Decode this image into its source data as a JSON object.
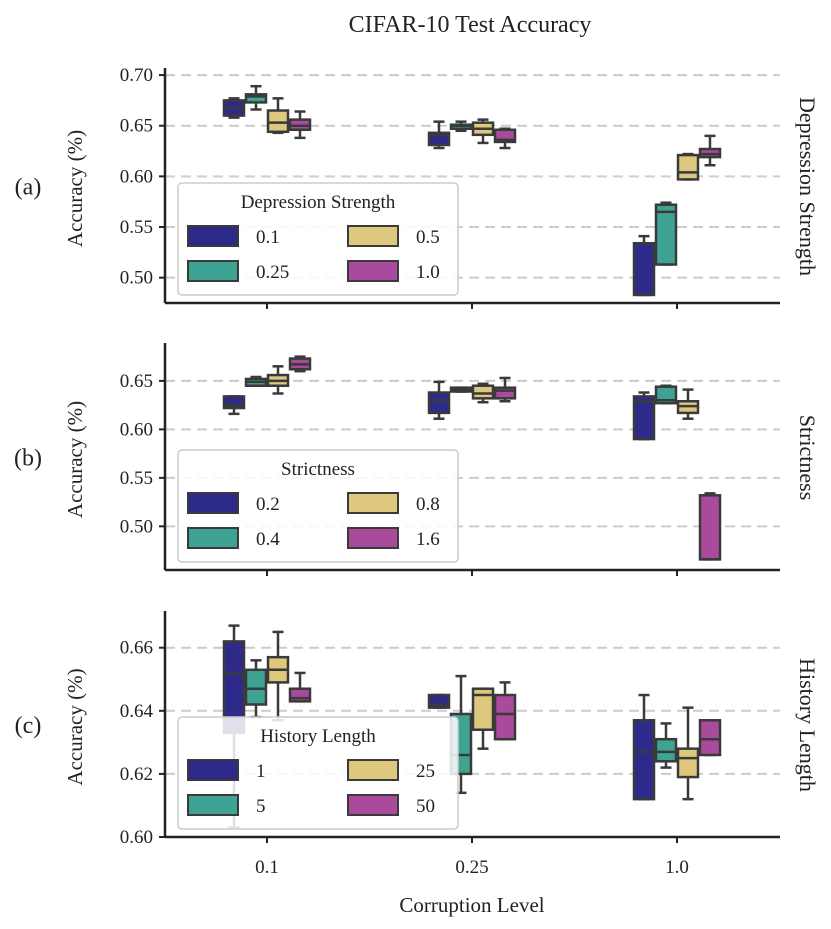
{
  "colors": {
    "s1": "#2e2a8c",
    "s2": "#3fa394",
    "s3": "#ddc87e",
    "s4": "#a94a9c",
    "grid": "#cccccc",
    "edge": "#3a3a3a"
  },
  "chart_data": {
    "type": "box",
    "title": "CIFAR-10 Test Accuracy",
    "xlabel": "Corruption Level",
    "categories": [
      "0.1",
      "0.25",
      "1.0"
    ],
    "panels": [
      {
        "letter": "(a)",
        "row_title": "Depression Strength",
        "ylabel": "Accuracy (%)",
        "ylim": [
          0.475,
          0.705
        ],
        "yticks": [
          0.5,
          0.55,
          0.6,
          0.65,
          0.7
        ],
        "ytick_labels": [
          "0.50",
          "0.55",
          "0.60",
          "0.65",
          "0.70"
        ],
        "legend": {
          "title": "Depression Strength",
          "position": "lower-left",
          "labels": [
            "0.1",
            "0.25",
            "0.5",
            "1.0"
          ]
        },
        "series": [
          {
            "name": "0.1",
            "boxes": [
              {
                "whislo": 0.658,
                "q1": 0.66,
                "med": 0.668,
                "q3": 0.675,
                "whishi": 0.677
              },
              {
                "whislo": 0.628,
                "q1": 0.631,
                "med": 0.641,
                "q3": 0.643,
                "whishi": 0.654
              },
              {
                "whislo": 0.483,
                "q1": 0.483,
                "med": 0.483,
                "q3": 0.534,
                "whishi": 0.541
              }
            ]
          },
          {
            "name": "0.25",
            "boxes": [
              {
                "whislo": 0.666,
                "q1": 0.673,
                "med": 0.679,
                "q3": 0.681,
                "whishi": 0.689
              },
              {
                "whislo": 0.645,
                "q1": 0.647,
                "med": 0.65,
                "q3": 0.651,
                "whishi": 0.654
              },
              {
                "whislo": 0.513,
                "q1": 0.513,
                "med": 0.565,
                "q3": 0.572,
                "whishi": 0.574
              }
            ]
          },
          {
            "name": "0.5",
            "boxes": [
              {
                "whislo": 0.643,
                "q1": 0.644,
                "med": 0.653,
                "q3": 0.665,
                "whishi": 0.677
              },
              {
                "whislo": 0.633,
                "q1": 0.641,
                "med": 0.647,
                "q3": 0.653,
                "whishi": 0.656
              },
              {
                "whislo": 0.597,
                "q1": 0.597,
                "med": 0.604,
                "q3": 0.621,
                "whishi": 0.622
              }
            ]
          },
          {
            "name": "1.0",
            "boxes": [
              {
                "whislo": 0.638,
                "q1": 0.646,
                "med": 0.65,
                "q3": 0.656,
                "whishi": 0.664
              },
              {
                "whislo": 0.628,
                "q1": 0.634,
                "med": 0.636,
                "q3": 0.646,
                "whishi": 0.647
              },
              {
                "whislo": 0.611,
                "q1": 0.619,
                "med": 0.622,
                "q3": 0.627,
                "whishi": 0.64
              }
            ]
          }
        ]
      },
      {
        "letter": "(b)",
        "row_title": "Strictness",
        "ylabel": "Accuracy (%)",
        "ylim": [
          0.455,
          0.687
        ],
        "yticks": [
          0.5,
          0.55,
          0.6,
          0.65
        ],
        "ytick_labels": [
          "0.50",
          "0.55",
          "0.60",
          "0.65"
        ],
        "legend": {
          "title": "Strictness",
          "position": "lower-left",
          "labels": [
            "0.2",
            "0.4",
            "0.8",
            "1.6"
          ]
        },
        "series": [
          {
            "name": "0.2",
            "boxes": [
              {
                "whislo": 0.616,
                "q1": 0.622,
                "med": 0.625,
                "q3": 0.634,
                "whishi": 0.634
              },
              {
                "whislo": 0.611,
                "q1": 0.617,
                "med": 0.63,
                "q3": 0.638,
                "whishi": 0.649
              },
              {
                "whislo": 0.59,
                "q1": 0.59,
                "med": 0.629,
                "q3": 0.634,
                "whishi": 0.638
              }
            ]
          },
          {
            "name": "0.4",
            "boxes": [
              {
                "whislo": 0.645,
                "q1": 0.645,
                "med": 0.649,
                "q3": 0.652,
                "whishi": 0.654
              },
              {
                "whislo": 0.639,
                "q1": 0.639,
                "med": 0.641,
                "q3": 0.643,
                "whishi": 0.643
              },
              {
                "whislo": 0.627,
                "q1": 0.627,
                "med": 0.63,
                "q3": 0.644,
                "whishi": 0.645
              }
            ]
          },
          {
            "name": "0.8",
            "boxes": [
              {
                "whislo": 0.637,
                "q1": 0.645,
                "med": 0.65,
                "q3": 0.656,
                "whishi": 0.665
              },
              {
                "whislo": 0.628,
                "q1": 0.632,
                "med": 0.637,
                "q3": 0.645,
                "whishi": 0.647
              },
              {
                "whislo": 0.611,
                "q1": 0.617,
                "med": 0.624,
                "q3": 0.629,
                "whishi": 0.641
              }
            ]
          },
          {
            "name": "1.6",
            "boxes": [
              {
                "whislo": 0.66,
                "q1": 0.662,
                "med": 0.667,
                "q3": 0.673,
                "whishi": 0.675
              },
              {
                "whislo": 0.629,
                "q1": 0.632,
                "med": 0.64,
                "q3": 0.643,
                "whishi": 0.653
              },
              {
                "whislo": 0.466,
                "q1": 0.466,
                "med": 0.466,
                "q3": 0.532,
                "whishi": 0.534
              }
            ]
          }
        ]
      },
      {
        "letter": "(c)",
        "row_title": "History Length",
        "ylabel": "Accuracy (%)",
        "ylim": [
          0.6,
          0.671
        ],
        "yticks": [
          0.6,
          0.62,
          0.64,
          0.66
        ],
        "ytick_labels": [
          "0.60",
          "0.62",
          "0.64",
          "0.66"
        ],
        "legend": {
          "title": "History Length",
          "position": "lower-left",
          "labels": [
            "1",
            "5",
            "25",
            "50"
          ]
        },
        "series": [
          {
            "name": "1",
            "boxes": [
              {
                "whislo": 0.603,
                "q1": 0.633,
                "med": 0.652,
                "q3": 0.662,
                "whishi": 0.667
              },
              {
                "whislo": 0.641,
                "q1": 0.641,
                "med": 0.642,
                "q3": 0.645,
                "whishi": 0.645
              },
              {
                "whislo": 0.612,
                "q1": 0.612,
                "med": 0.627,
                "q3": 0.637,
                "whishi": 0.645
              }
            ]
          },
          {
            "name": "5",
            "boxes": [
              {
                "whislo": 0.638,
                "q1": 0.642,
                "med": 0.647,
                "q3": 0.653,
                "whishi": 0.656
              },
              {
                "whislo": 0.614,
                "q1": 0.62,
                "med": 0.626,
                "q3": 0.639,
                "whishi": 0.651
              },
              {
                "whislo": 0.622,
                "q1": 0.624,
                "med": 0.627,
                "q3": 0.631,
                "whishi": 0.636
              }
            ]
          },
          {
            "name": "25",
            "boxes": [
              {
                "whislo": 0.637,
                "q1": 0.649,
                "med": 0.653,
                "q3": 0.657,
                "whishi": 0.665
              },
              {
                "whislo": 0.628,
                "q1": 0.634,
                "med": 0.645,
                "q3": 0.647,
                "whishi": 0.647
              },
              {
                "whislo": 0.612,
                "q1": 0.619,
                "med": 0.625,
                "q3": 0.628,
                "whishi": 0.641
              }
            ]
          },
          {
            "name": "50",
            "boxes": [
              {
                "whislo": 0.643,
                "q1": 0.643,
                "med": 0.644,
                "q3": 0.647,
                "whishi": 0.652
              },
              {
                "whislo": 0.631,
                "q1": 0.631,
                "med": 0.639,
                "q3": 0.645,
                "whishi": 0.649
              },
              {
                "whislo": 0.626,
                "q1": 0.626,
                "med": 0.631,
                "q3": 0.637,
                "whishi": 0.637
              }
            ]
          }
        ]
      }
    ]
  }
}
